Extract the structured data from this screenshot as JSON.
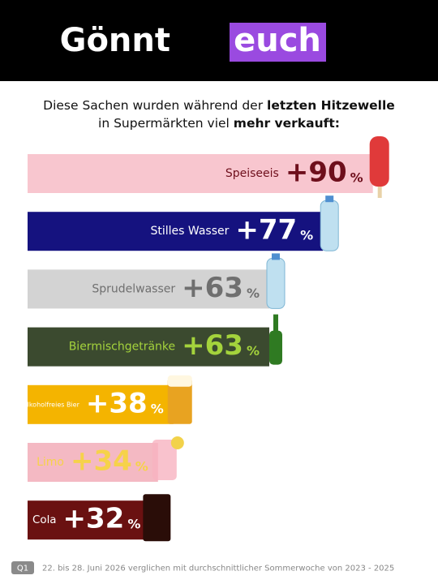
{
  "header": {
    "title_part1": "Gönnt",
    "title_part2": "euch"
  },
  "subtitle": {
    "line1_regular": "Diese Sachen wurden während der",
    "line1_bold": "letzten Hitzewelle",
    "line2_regular": "in Supermärkten viel",
    "line2_bold": "mehr verkauft:"
  },
  "chart_data": {
    "type": "bar",
    "orientation": "horizontal",
    "categories": [
      "Speiseeis",
      "Stilles Wasser",
      "Sprudelwasser",
      "Biermischgetränke",
      "Alkoholfreies Bier",
      "Limo",
      "Cola"
    ],
    "values": [
      90,
      77,
      63,
      63,
      38,
      34,
      32
    ],
    "value_labels": [
      "+90",
      "+77",
      "+63",
      "+63",
      "+38",
      "+34",
      "+32"
    ],
    "unit": "%",
    "colors": [
      "#f8c6cf",
      "#15127f",
      "#d3d3d3",
      "#3b4a2f",
      "#f4b400",
      "#f4b9c3",
      "#6a1111"
    ],
    "label_colors": [
      "#6e0f1c",
      "#ffffff",
      "#6f6f6f",
      "#a4d33c",
      "#ffffff",
      "#f6d24a",
      "#ffffff"
    ]
  },
  "footer": {
    "badge": "Q1",
    "note": "22. bis 28. Juni 2026 verglichen mit durchschnittlicher Sommerwoche von 2023 - 2025"
  }
}
